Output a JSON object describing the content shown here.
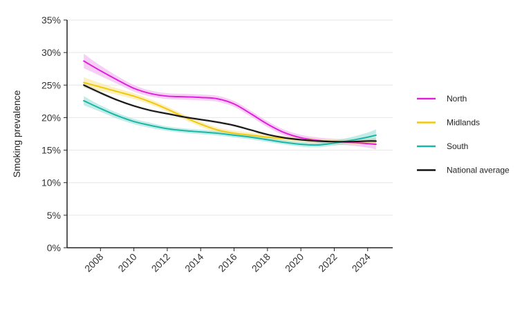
{
  "chart_data": {
    "type": "line",
    "title": "",
    "xlabel": "",
    "ylabel": "Smoking prevalence",
    "xlim": [
      2006,
      2025.5
    ],
    "ylim": [
      0,
      35
    ],
    "y_ticks": [
      0,
      5,
      10,
      15,
      20,
      25,
      30,
      35
    ],
    "y_tick_labels": [
      "0%",
      "5%",
      "10%",
      "15%",
      "20%",
      "25%",
      "30%",
      "35%"
    ],
    "x_ticks": [
      2008,
      2010,
      2012,
      2014,
      2016,
      2018,
      2020,
      2022,
      2024
    ],
    "x_tick_labels": [
      "2008",
      "2010",
      "2012",
      "2014",
      "2016",
      "2018",
      "2020",
      "2022",
      "2024"
    ],
    "grid": "horizontal",
    "legend_position": "right",
    "confidence_band": true,
    "series": [
      {
        "name": "North",
        "color": "#e020d8",
        "band_color": "#f0a6ee",
        "x": [
          2007,
          2008,
          2009,
          2010,
          2011,
          2012,
          2013,
          2014,
          2015,
          2016,
          2017,
          2018,
          2019,
          2020,
          2021,
          2022,
          2023,
          2024,
          2024.5
        ],
        "y": [
          28.7,
          27.2,
          25.8,
          24.5,
          23.7,
          23.3,
          23.2,
          23.1,
          22.9,
          22.1,
          20.6,
          19.0,
          17.7,
          16.9,
          16.5,
          16.3,
          16.2,
          16.0,
          15.9
        ],
        "band": [
          1.1,
          0.8,
          0.6,
          0.5,
          0.45,
          0.45,
          0.45,
          0.45,
          0.45,
          0.45,
          0.45,
          0.45,
          0.45,
          0.45,
          0.45,
          0.45,
          0.5,
          0.6,
          0.8
        ]
      },
      {
        "name": "Midlands",
        "color": "#f2c80f",
        "band_color": "#f8e38a",
        "x": [
          2007,
          2008,
          2009,
          2010,
          2011,
          2012,
          2013,
          2014,
          2015,
          2016,
          2017,
          2018,
          2019,
          2020,
          2021,
          2022,
          2023,
          2024,
          2024.5
        ],
        "y": [
          25.4,
          24.7,
          24.0,
          23.3,
          22.4,
          21.3,
          20.1,
          19.0,
          18.1,
          17.6,
          17.3,
          17.0,
          16.8,
          16.6,
          16.4,
          16.3,
          16.3,
          16.3,
          16.3
        ],
        "band": [
          0.8,
          0.6,
          0.5,
          0.45,
          0.4,
          0.4,
          0.4,
          0.4,
          0.4,
          0.4,
          0.4,
          0.4,
          0.4,
          0.4,
          0.4,
          0.4,
          0.4,
          0.5,
          0.6
        ]
      },
      {
        "name": "South",
        "color": "#17b6a7",
        "band_color": "#94dcd4",
        "x": [
          2007,
          2008,
          2009,
          2010,
          2011,
          2012,
          2013,
          2014,
          2015,
          2016,
          2017,
          2018,
          2019,
          2020,
          2021,
          2022,
          2023,
          2024,
          2024.5
        ],
        "y": [
          22.6,
          21.4,
          20.3,
          19.4,
          18.8,
          18.3,
          18.0,
          17.8,
          17.6,
          17.3,
          17.0,
          16.6,
          16.2,
          15.9,
          15.8,
          16.1,
          16.5,
          17.0,
          17.3
        ],
        "band": [
          0.7,
          0.5,
          0.45,
          0.4,
          0.4,
          0.35,
          0.35,
          0.35,
          0.35,
          0.35,
          0.35,
          0.35,
          0.35,
          0.35,
          0.35,
          0.4,
          0.5,
          0.7,
          0.9
        ]
      },
      {
        "name": "National average",
        "color": "#111111",
        "band_color": "#bbbbbb",
        "x": [
          2007,
          2008,
          2009,
          2010,
          2011,
          2012,
          2013,
          2014,
          2015,
          2016,
          2017,
          2018,
          2019,
          2020,
          2021,
          2022,
          2023,
          2024,
          2024.5
        ],
        "y": [
          25.0,
          23.8,
          22.7,
          21.8,
          21.1,
          20.6,
          20.1,
          19.7,
          19.3,
          18.8,
          18.1,
          17.4,
          16.9,
          16.6,
          16.4,
          16.3,
          16.3,
          16.4,
          16.4
        ],
        "band": [
          0.3,
          0.25,
          0.2,
          0.2,
          0.2,
          0.2,
          0.2,
          0.2,
          0.2,
          0.2,
          0.2,
          0.2,
          0.2,
          0.2,
          0.2,
          0.2,
          0.2,
          0.25,
          0.3
        ]
      }
    ]
  }
}
